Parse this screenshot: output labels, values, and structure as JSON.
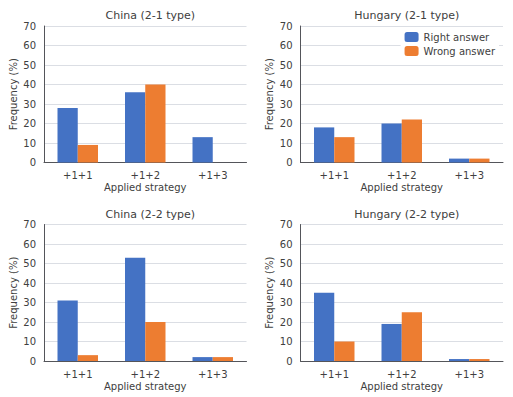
{
  "chart_data": [
    {
      "type": "bar",
      "title": "China (2-1 type)",
      "categories": [
        "+1+1",
        "+1+2",
        "+1+3"
      ],
      "series": [
        {
          "name": "Right answer",
          "color": "#4472C4",
          "values": [
            28,
            36,
            13
          ]
        },
        {
          "name": "Wrong answer",
          "color": "#ED7D31",
          "values": [
            9,
            40,
            0
          ]
        }
      ],
      "xlabel": "Applied strategy",
      "ylabel": "Frequency (%)",
      "ylim": [
        0,
        70
      ],
      "yticks": [
        0,
        10,
        20,
        30,
        40,
        50,
        60,
        70
      ],
      "grid": true
    },
    {
      "type": "bar",
      "title": "Hungary (2-1 type)",
      "categories": [
        "+1+1",
        "+1+2",
        "+1+3"
      ],
      "series": [
        {
          "name": "Right answer",
          "color": "#4472C4",
          "values": [
            18,
            20,
            2
          ]
        },
        {
          "name": "Wrong answer",
          "color": "#ED7D31",
          "values": [
            13,
            22,
            2
          ]
        }
      ],
      "xlabel": "Applied strategy",
      "ylabel": "Frequency (%)",
      "ylim": [
        0,
        70
      ],
      "yticks": [
        0,
        10,
        20,
        30,
        40,
        50,
        60,
        70
      ],
      "grid": true,
      "legend": "upper right"
    },
    {
      "type": "bar",
      "title": "China (2-2 type)",
      "categories": [
        "+1+1",
        "+1+2",
        "+1+3"
      ],
      "series": [
        {
          "name": "Right answer",
          "color": "#4472C4",
          "values": [
            31,
            53,
            2
          ]
        },
        {
          "name": "Wrong answer",
          "color": "#ED7D31",
          "values": [
            3,
            20,
            2
          ]
        }
      ],
      "xlabel": "Applied strategy",
      "ylabel": "Frequency (%)",
      "ylim": [
        0,
        70
      ],
      "yticks": [
        0,
        10,
        20,
        30,
        40,
        50,
        60,
        70
      ],
      "grid": true
    },
    {
      "type": "bar",
      "title": "Hungary (2-2 type)",
      "categories": [
        "+1+1",
        "+1+2",
        "+1+3"
      ],
      "series": [
        {
          "name": "Right answer",
          "color": "#4472C4",
          "values": [
            35,
            19,
            1
          ]
        },
        {
          "name": "Wrong answer",
          "color": "#ED7D31",
          "values": [
            10,
            25,
            1
          ]
        }
      ],
      "xlabel": "Applied strategy",
      "ylabel": "Frequency (%)",
      "ylim": [
        0,
        70
      ],
      "yticks": [
        0,
        10,
        20,
        30,
        40,
        50,
        60,
        70
      ],
      "grid": true
    }
  ]
}
